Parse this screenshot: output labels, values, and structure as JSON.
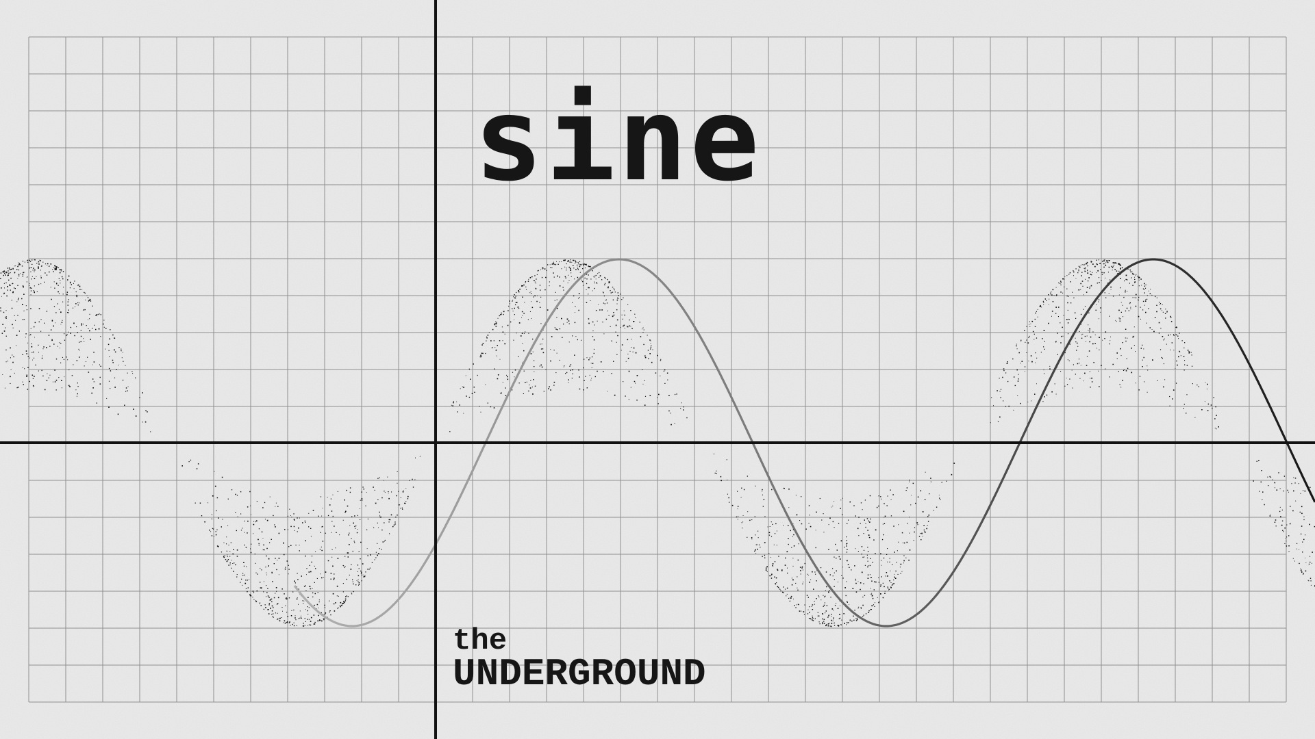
{
  "title": "sine",
  "brand": {
    "line1": "the",
    "line2": "UNDERGROUND"
  },
  "colors": {
    "paper": "#ececec",
    "grid": "#8f8f8f",
    "axis": "#111111",
    "ink": "#111111"
  }
}
